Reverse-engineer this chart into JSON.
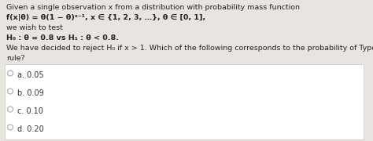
{
  "line1": "Given a single observation x from a distribution with probability mass function",
  "line2": "f(x|θ) = θ(1 − θ)ˣ⁻¹, x ∈ {1, 2, 3, …}, θ ∈ [0, 1],",
  "line3": "we wish to test",
  "line4": "H₀ : θ = 0.8 vs H₁ : θ < 0.8.",
  "line5": "We have decided to reject H₀ if x > 1. Which of the following corresponds to the probability of Type I error for this",
  "line6": "rule?",
  "options": [
    "a. 0.05",
    "b. 0.09",
    "c. 0.10",
    "d. 0.20"
  ],
  "bg_color": "#e8e5e0",
  "box_bg": "#ffffff",
  "box_border": "#cccccc",
  "text_color": "#222222",
  "option_text_color": "#333333",
  "font_size": 6.8,
  "option_font_size": 7.0,
  "circle_color": "#aaaaaa"
}
